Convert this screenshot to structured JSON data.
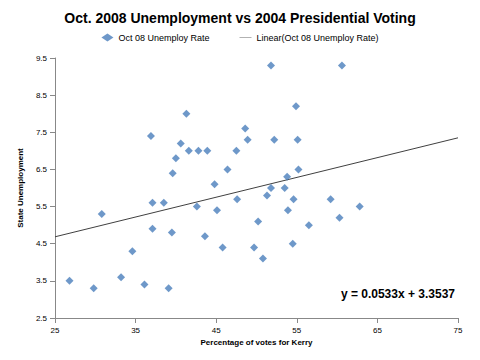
{
  "chart_data": {
    "type": "scatter",
    "title": "Oct. 2008 Unemployment vs 2004 Presidential Voting",
    "x_label": "Percentage of votes for Kerry",
    "y_label": "State Unemployment",
    "xlim": [
      25,
      75
    ],
    "xticks": [
      25,
      35,
      45,
      55,
      65,
      75
    ],
    "ylim": [
      2.5,
      9.5
    ],
    "yticks": [
      2.5,
      3.5,
      4.5,
      5.5,
      6.5,
      7.5,
      8.5,
      9.5
    ],
    "grid": false,
    "legend": "top",
    "series": [
      {
        "name": "Oct 08 Unemploy Rate",
        "type": "scatter",
        "color": "#4a7ebb",
        "marker": "diamond",
        "x": [
          26.8,
          29.8,
          30.8,
          33.2,
          34.6,
          36.1,
          36.9,
          37.1,
          37.1,
          38.5,
          39.1,
          39.5,
          39.6,
          40.0,
          40.6,
          41.3,
          41.6,
          42.6,
          42.8,
          43.6,
          43.9,
          44.8,
          45.1,
          45.8,
          46.4,
          47.5,
          47.6,
          48.6,
          48.9,
          49.7,
          50.2,
          50.8,
          51.3,
          51.8,
          51.8,
          52.2,
          53.5,
          53.8,
          53.9,
          54.5,
          54.6,
          54.9,
          55.1,
          55.2,
          56.5,
          59.2,
          60.3,
          60.6,
          62.8
        ],
        "values": [
          3.5,
          3.3,
          5.3,
          3.6,
          4.3,
          3.4,
          7.4,
          5.6,
          4.9,
          5.6,
          3.3,
          4.8,
          6.4,
          6.8,
          7.2,
          8.0,
          7.0,
          5.5,
          7.0,
          4.7,
          7.0,
          6.1,
          5.4,
          4.4,
          6.5,
          7.0,
          5.7,
          7.6,
          7.3,
          4.4,
          5.1,
          4.1,
          5.8,
          9.3,
          6.0,
          7.3,
          6.0,
          6.3,
          5.4,
          4.5,
          5.7,
          8.2,
          7.3,
          6.5,
          5.0,
          5.7,
          5.2,
          9.3,
          5.5
        ]
      },
      {
        "name": "Linear(Oct 08 Unemploy Rate)",
        "type": "line",
        "color": "#404040",
        "line_style": "solid",
        "slope": 0.0533,
        "intercept": 3.3537
      }
    ],
    "annotations": [
      {
        "text": "y = 0.0533x + 3.3537"
      }
    ]
  }
}
